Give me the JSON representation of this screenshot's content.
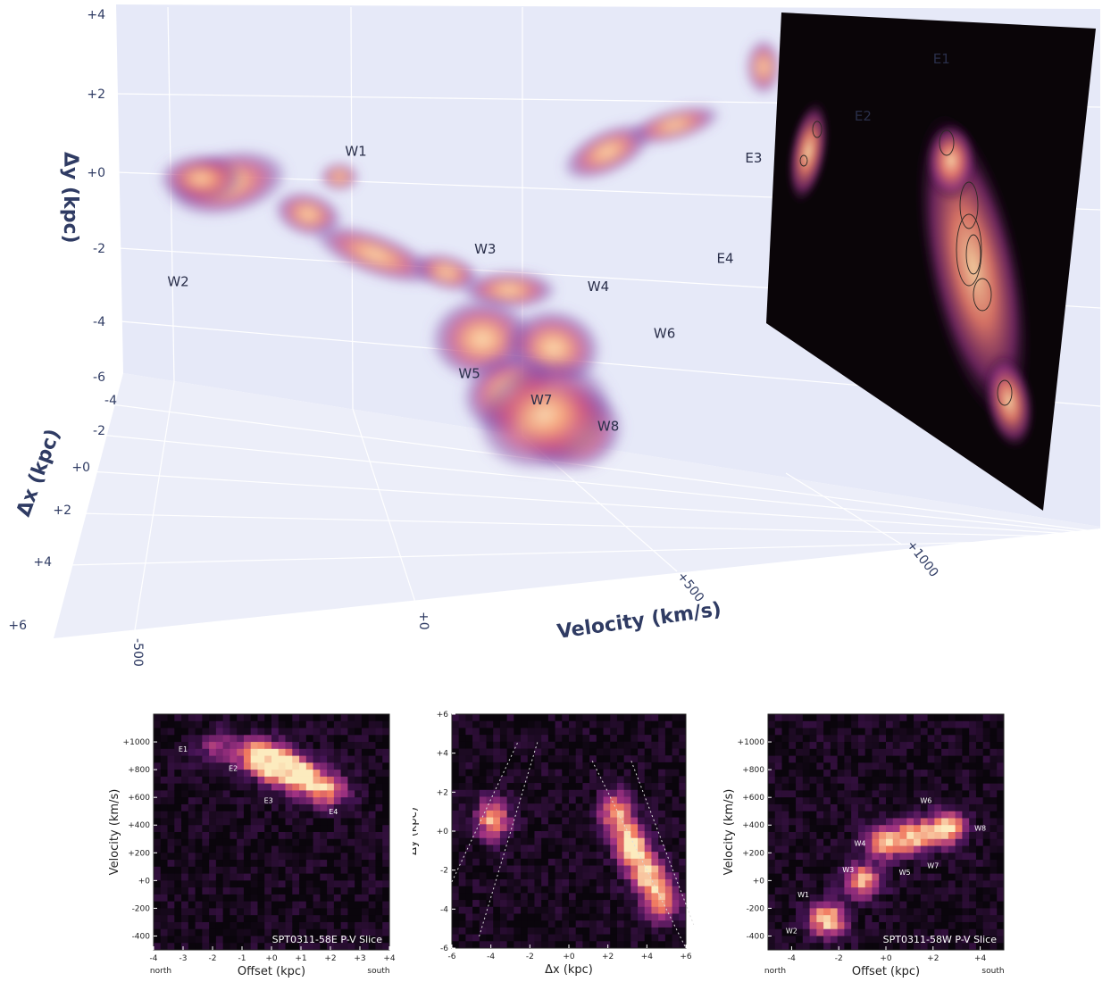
{
  "chart_data": [
    {
      "type": "scatter",
      "subtype": "3d-volume",
      "title": "",
      "axes": {
        "velocity": {
          "label": "Velocity (km/s)",
          "ticks": [
            "-500",
            "+0",
            "+500",
            "+1000"
          ],
          "range": [
            -600,
            1150
          ]
        },
        "dy": {
          "label": "Δy (kpc)",
          "ticks": [
            "+4",
            "+2",
            "+0",
            "-2",
            "-4",
            "-6"
          ],
          "range": [
            -6,
            4
          ]
        },
        "dx": {
          "label": "Δx (kpc)",
          "ticks": [
            "-4",
            "-2",
            "+0",
            "+2",
            "+4",
            "+6"
          ],
          "range": [
            -4,
            6
          ]
        }
      },
      "clump_labels": [
        {
          "name": "E1",
          "velocity": 1050,
          "dy": 3.3
        },
        {
          "name": "E2",
          "velocity": 880,
          "dy": 2.0
        },
        {
          "name": "E3",
          "velocity": 650,
          "dy": 1.0
        },
        {
          "name": "E4",
          "velocity": 560,
          "dy": -1.1
        },
        {
          "name": "W1",
          "velocity": -180,
          "dy": 0.9
        },
        {
          "name": "W2",
          "velocity": -430,
          "dy": -1.8
        },
        {
          "name": "W3",
          "velocity": 80,
          "dy": -1.3
        },
        {
          "name": "W4",
          "velocity": 300,
          "dy": -2.4
        },
        {
          "name": "W5",
          "velocity": 110,
          "dy": -4.2
        },
        {
          "name": "W6",
          "velocity": 420,
          "dy": -3.8
        },
        {
          "name": "W7",
          "velocity": 250,
          "dy": -5.0
        },
        {
          "name": "W8",
          "velocity": 380,
          "dy": -5.8
        }
      ],
      "colormap": [
        "#2a0f4a",
        "#6a2a8a",
        "#b13e8a",
        "#e8676a",
        "#f8a37a",
        "#fbe1b4"
      ]
    },
    {
      "type": "heatmap",
      "title": "SPT0311-58E P-V Slice",
      "xlabel": "Offset (kpc)",
      "ylabel": "Velocity (km/s)",
      "xticks": [
        "-4",
        "-3",
        "-2",
        "-1",
        "+0",
        "+1",
        "+2",
        "+3",
        "+4"
      ],
      "yticks": [
        "+1000",
        "+800",
        "+600",
        "+400",
        "+200",
        "+0",
        "-200",
        "-400"
      ],
      "xlim": [
        -4,
        4
      ],
      "ylim": [
        -500,
        1200
      ],
      "x_end_labels": {
        "left": "north",
        "right": "south"
      },
      "emission": [
        {
          "offset": -1.8,
          "velocity": 950,
          "intensity": 0.45
        },
        {
          "offset": -0.4,
          "velocity": 900,
          "intensity": 1.0
        },
        {
          "offset": 0.3,
          "velocity": 820,
          "intensity": 1.0
        },
        {
          "offset": 1.0,
          "velocity": 750,
          "intensity": 0.9
        },
        {
          "offset": 1.9,
          "velocity": 650,
          "intensity": 0.75
        }
      ],
      "clump_labels": [
        {
          "name": "E1",
          "offset": -3.0,
          "velocity": 930
        },
        {
          "name": "E2",
          "offset": -1.3,
          "velocity": 790
        },
        {
          "name": "E3",
          "offset": -0.1,
          "velocity": 560
        },
        {
          "name": "E4",
          "offset": 2.1,
          "velocity": 480
        }
      ]
    },
    {
      "type": "heatmap",
      "title": "",
      "xlabel": "Δx (kpc)",
      "ylabel": "Δy (kpc)",
      "xticks": [
        "-6",
        "-4",
        "-2",
        "+0",
        "+2",
        "+4",
        "+6"
      ],
      "yticks": [
        "+6",
        "+4",
        "+2",
        "+0",
        "-2",
        "-4",
        "-6"
      ],
      "xlim": [
        -6,
        6
      ],
      "ylim": [
        -6,
        6
      ],
      "emission": [
        {
          "dx": -3.9,
          "dy": 0.6,
          "intensity": 0.85
        },
        {
          "dx": 2.4,
          "dy": 1.0,
          "intensity": 0.8
        },
        {
          "dx": 3.2,
          "dy": -0.7,
          "intensity": 1.0
        },
        {
          "dx": 4.0,
          "dy": -2.2,
          "intensity": 0.95
        },
        {
          "dx": 4.8,
          "dy": -3.6,
          "intensity": 0.8
        }
      ]
    },
    {
      "type": "heatmap",
      "title": "SPT0311-58W P-V Slice",
      "xlabel": "Offset (kpc)",
      "ylabel": "Velocity (km/s)",
      "xticks": [
        "-4",
        "-2",
        "+0",
        "+2",
        "+4"
      ],
      "yticks": [
        "+1000",
        "+800",
        "+600",
        "+400",
        "+200",
        "+0",
        "-200",
        "-400"
      ],
      "xlim": [
        -5,
        5
      ],
      "ylim": [
        -500,
        1200
      ],
      "x_end_labels": {
        "left": "north",
        "right": "south"
      },
      "emission": [
        {
          "offset": -2.5,
          "velocity": -280,
          "intensity": 1.0
        },
        {
          "offset": -1.0,
          "velocity": 0,
          "intensity": 0.85
        },
        {
          "offset": 0.0,
          "velocity": 280,
          "intensity": 0.9
        },
        {
          "offset": 1.3,
          "velocity": 320,
          "intensity": 0.85
        },
        {
          "offset": 2.6,
          "velocity": 380,
          "intensity": 0.95
        }
      ],
      "clump_labels": [
        {
          "name": "W1",
          "offset": -3.5,
          "velocity": -120
        },
        {
          "name": "W2",
          "offset": -4.0,
          "velocity": -380
        },
        {
          "name": "W3",
          "offset": -1.6,
          "velocity": 60
        },
        {
          "name": "W4",
          "offset": -1.1,
          "velocity": 250
        },
        {
          "name": "W5",
          "offset": 0.8,
          "velocity": 40
        },
        {
          "name": "W6",
          "offset": 1.7,
          "velocity": 560
        },
        {
          "name": "W7",
          "offset": 2.0,
          "velocity": 90
        },
        {
          "name": "W8",
          "offset": 4.0,
          "velocity": 360
        }
      ]
    }
  ]
}
